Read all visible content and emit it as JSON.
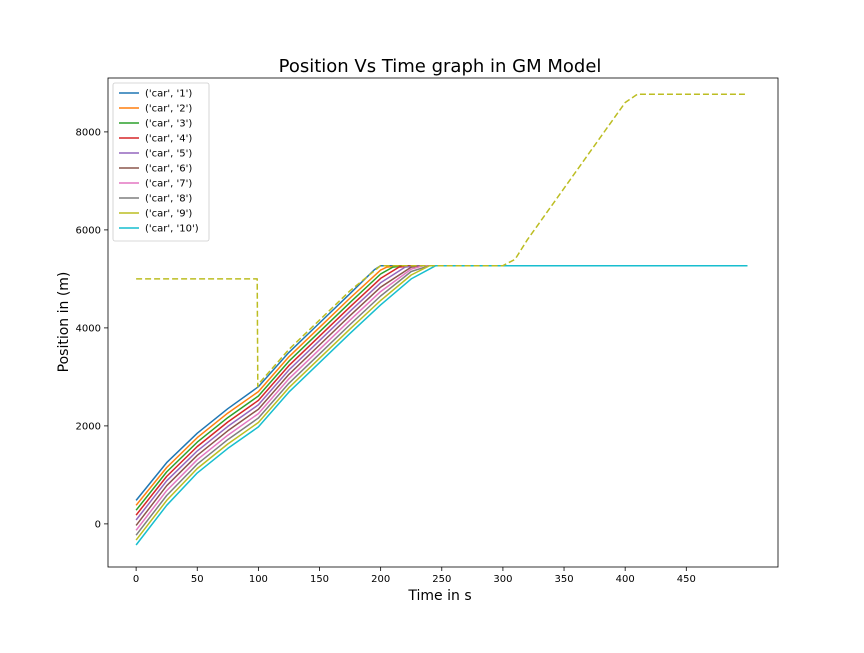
{
  "chart_data": {
    "type": "line",
    "title": "Position  Vs Time graph in GM Model",
    "xlabel": "Time in s",
    "ylabel": "Position in (m)",
    "xlim": [
      -23,
      525
    ],
    "ylim": [
      -880,
      9100
    ],
    "x_ticks": [
      0,
      50,
      100,
      150,
      200,
      250,
      300,
      350,
      400,
      450
    ],
    "y_ticks": [
      0,
      2000,
      4000,
      6000,
      8000
    ],
    "grid": false,
    "legend_position": "top-left",
    "series": [
      {
        "name": "('car', '1')",
        "color": "#1f77b4",
        "style": "solid",
        "x": [
          0,
          25,
          50,
          75,
          100,
          125,
          150,
          175,
          195,
          200,
          210,
          500
        ],
        "y": [
          480,
          1250,
          1850,
          2350,
          2800,
          3500,
          4100,
          4700,
          5190,
          5270,
          5270,
          5270
        ]
      },
      {
        "name": "('car', '2')",
        "color": "#ff7f0e",
        "style": "solid",
        "x": [
          0,
          25,
          50,
          75,
          100,
          125,
          150,
          175,
          200,
          205,
          215,
          500
        ],
        "y": [
          380,
          1150,
          1760,
          2260,
          2700,
          3410,
          4010,
          4610,
          5180,
          5240,
          5270,
          5270
        ]
      },
      {
        "name": "('car', '3')",
        "color": "#2ca02c",
        "style": "solid",
        "x": [
          0,
          25,
          50,
          75,
          100,
          125,
          150,
          175,
          200,
          210,
          220,
          500
        ],
        "y": [
          280,
          1060,
          1670,
          2170,
          2610,
          3320,
          3920,
          4520,
          5100,
          5240,
          5270,
          5270
        ]
      },
      {
        "name": "('car', '4')",
        "color": "#d62728",
        "style": "solid",
        "x": [
          0,
          25,
          50,
          75,
          100,
          125,
          150,
          175,
          200,
          215,
          225,
          500
        ],
        "y": [
          180,
          970,
          1580,
          2080,
          2520,
          3230,
          3830,
          4430,
          5010,
          5240,
          5270,
          5270
        ]
      },
      {
        "name": "('car', '5')",
        "color": "#9467bd",
        "style": "solid",
        "x": [
          0,
          25,
          50,
          75,
          100,
          125,
          150,
          175,
          200,
          220,
          230,
          500
        ],
        "y": [
          80,
          880,
          1490,
          1990,
          2430,
          3140,
          3740,
          4340,
          4920,
          5240,
          5270,
          5270
        ]
      },
      {
        "name": "('car', '6')",
        "color": "#8c564b",
        "style": "solid",
        "x": [
          0,
          25,
          50,
          75,
          100,
          125,
          150,
          175,
          200,
          225,
          235,
          500
        ],
        "y": [
          -30,
          780,
          1400,
          1900,
          2340,
          3050,
          3650,
          4250,
          4830,
          5240,
          5270,
          5270
        ]
      },
      {
        "name": "('car', '7')",
        "color": "#e377c2",
        "style": "solid",
        "x": [
          0,
          25,
          50,
          75,
          100,
          125,
          150,
          175,
          200,
          225,
          235,
          500
        ],
        "y": [
          -130,
          680,
          1310,
          1810,
          2250,
          2960,
          3560,
          4160,
          4740,
          5200,
          5270,
          5270
        ]
      },
      {
        "name": "('car', '8')",
        "color": "#7f7f7f",
        "style": "solid",
        "x": [
          0,
          25,
          50,
          75,
          100,
          125,
          150,
          175,
          200,
          225,
          240,
          500
        ],
        "y": [
          -230,
          580,
          1220,
          1720,
          2160,
          2870,
          3470,
          4070,
          4650,
          5150,
          5270,
          5270
        ]
      },
      {
        "name": "('car', '9')",
        "color": "#bcbd22",
        "style": "solid",
        "x": [
          0,
          25,
          50,
          75,
          100,
          125,
          150,
          175,
          200,
          225,
          240,
          500
        ],
        "y": [
          -330,
          480,
          1130,
          1630,
          2070,
          2780,
          3380,
          3980,
          4560,
          5080,
          5270,
          5270
        ]
      },
      {
        "name": "('car', '10')",
        "color": "#17becf",
        "style": "solid",
        "x": [
          0,
          25,
          50,
          75,
          100,
          125,
          150,
          175,
          200,
          225,
          245,
          500
        ],
        "y": [
          -430,
          380,
          1040,
          1540,
          1980,
          2690,
          3290,
          3890,
          4470,
          5000,
          5270,
          5270
        ]
      },
      {
        "name": "",
        "color": "#bcbd22",
        "style": "dashed",
        "x": [
          0,
          99,
          99.5,
          100,
          125,
          150,
          175,
          200,
          205,
          300,
          310,
          320,
          400,
          410,
          500
        ],
        "y": [
          5000,
          5000,
          2800,
          2850,
          3560,
          4160,
          4760,
          5270,
          5270,
          5270,
          5400,
          5800,
          8600,
          8770,
          8770
        ]
      }
    ]
  }
}
